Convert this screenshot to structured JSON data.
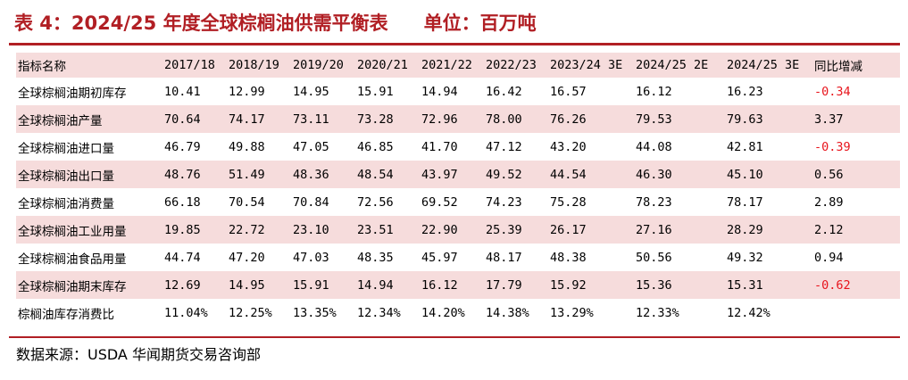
{
  "title": "表 4：2024/25 年度全球棕榈油供需平衡表",
  "unit": "单位：百万吨",
  "table": {
    "headers": [
      "指标名称",
      "2017/18",
      "2018/19",
      "2019/20",
      "2020/21",
      "2021/22",
      "2022/23",
      "2023/24 3E",
      "2024/25 2E",
      "2024/25 3E",
      "同比增减"
    ],
    "rows": [
      {
        "name": "全球棕榈油期初库存",
        "values": [
          "10.41",
          "12.99",
          "14.95",
          "15.91",
          "14.94",
          "16.42",
          "16.57",
          "16.12",
          "16.23",
          "-0.34"
        ]
      },
      {
        "name": "全球棕榈油产量",
        "values": [
          "70.64",
          "74.17",
          "73.11",
          "73.28",
          "72.96",
          "78.00",
          "76.26",
          "79.53",
          "79.63",
          "3.37"
        ]
      },
      {
        "name": "全球棕榈油进口量",
        "values": [
          "46.79",
          "49.88",
          "47.05",
          "46.85",
          "41.70",
          "47.12",
          "43.20",
          "44.08",
          "42.81",
          "-0.39"
        ]
      },
      {
        "name": "全球棕榈油出口量",
        "values": [
          "48.76",
          "51.49",
          "48.36",
          "48.54",
          "43.97",
          "49.52",
          "44.54",
          "46.30",
          "45.10",
          "0.56"
        ]
      },
      {
        "name": "全球棕榈油消费量",
        "values": [
          "66.18",
          "70.54",
          "70.84",
          "72.56",
          "69.52",
          "74.23",
          "75.28",
          "78.23",
          "78.17",
          "2.89"
        ]
      },
      {
        "name": "全球棕榈油工业用量",
        "values": [
          "19.85",
          "22.72",
          "23.10",
          "23.51",
          "22.90",
          "25.39",
          "26.17",
          "27.16",
          "28.29",
          "2.12"
        ]
      },
      {
        "name": "全球棕榈油食品用量",
        "values": [
          "44.74",
          "47.20",
          "47.03",
          "48.35",
          "45.97",
          "48.17",
          "48.38",
          "50.56",
          "49.32",
          "0.94"
        ]
      },
      {
        "name": "全球棕榈油期末库存",
        "values": [
          "12.69",
          "14.95",
          "15.91",
          "14.94",
          "16.12",
          "17.79",
          "15.92",
          "15.36",
          "15.31",
          "-0.62"
        ]
      },
      {
        "name": "棕榈油库存消费比",
        "values": [
          "11.04%",
          "12.25%",
          "13.35%",
          "12.34%",
          "14.20%",
          "14.38%",
          "13.29%",
          "12.33%",
          "12.42%",
          ""
        ]
      }
    ]
  },
  "source": "数据来源：USDA 华闻期货交易咨询部",
  "colors": {
    "title": "#b11f24",
    "shade": "#f6dcdc",
    "negative": "#e8141c"
  }
}
